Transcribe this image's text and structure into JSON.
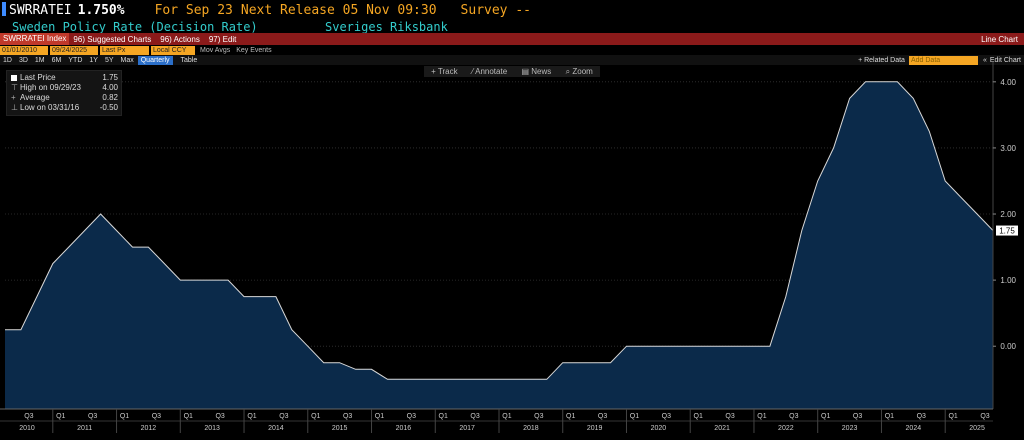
{
  "header": {
    "ticker": "SWRRATEI",
    "last_rate": "1.750%",
    "for_label": "For Sep 23",
    "next_release": "Next Release 05 Nov 09:30",
    "survey": "Survey --",
    "series_title": "Sweden Policy Rate (Decision Rate)",
    "source": "Sveriges Riksbank"
  },
  "menu": {
    "index_label": "SWRRATEI Index",
    "suggested": "96) Suggested Charts",
    "actions": "96) Actions",
    "edit": "97) Edit",
    "chart_type": "Line Chart"
  },
  "controls": {
    "start_date": "01/01/2010",
    "end_date": "09/24/2025",
    "field": "Last Px",
    "currency": "Local CCY",
    "mov_avgs": "Mov Avgs",
    "key_events": "Key Events",
    "periods": [
      "1D",
      "3D",
      "1M",
      "6M",
      "YTD",
      "1Y",
      "5Y",
      "Max"
    ],
    "frequency": "Quarterly",
    "table": "Table",
    "related": "+ Related Data",
    "add_data": "Add Data",
    "edit_chart": "Edit Chart"
  },
  "toolbar": {
    "track": "Track",
    "annotate": "Annotate",
    "news": "News",
    "zoom": "Zoom"
  },
  "legend": [
    {
      "label": "Last Price",
      "value": "1.75"
    },
    {
      "label": "High on 09/29/23",
      "value": "4.00"
    },
    {
      "label": "Average",
      "value": "0.82"
    },
    {
      "label": "Low on 03/31/16",
      "value": "-0.50"
    }
  ],
  "colors": {
    "fill": "#0b2a4a",
    "line": "#d9d9d9",
    "accent": "#f5a623",
    "header_bar": "#8b1a1a"
  },
  "chart_data": {
    "type": "area",
    "title": "Sweden Policy Rate (Decision Rate)",
    "x": [
      "2010-03-31",
      "2010-06-30",
      "2010-09-30",
      "2010-12-31",
      "2011-03-31",
      "2011-06-30",
      "2011-09-30",
      "2011-12-31",
      "2012-03-31",
      "2012-06-30",
      "2012-09-30",
      "2012-12-31",
      "2013-03-31",
      "2013-06-30",
      "2013-09-30",
      "2013-12-31",
      "2014-03-31",
      "2014-06-30",
      "2014-09-30",
      "2014-12-31",
      "2015-03-31",
      "2015-06-30",
      "2015-09-30",
      "2015-12-31",
      "2016-03-31",
      "2016-06-30",
      "2016-09-30",
      "2016-12-31",
      "2017-03-31",
      "2017-06-30",
      "2017-09-30",
      "2017-12-31",
      "2018-03-31",
      "2018-06-30",
      "2018-09-30",
      "2018-12-31",
      "2019-03-31",
      "2019-06-30",
      "2019-09-30",
      "2019-12-31",
      "2020-03-31",
      "2020-06-30",
      "2020-09-30",
      "2020-12-31",
      "2021-03-31",
      "2021-06-30",
      "2021-09-30",
      "2021-12-31",
      "2022-03-31",
      "2022-06-30",
      "2022-09-30",
      "2022-12-31",
      "2023-03-31",
      "2023-06-30",
      "2023-09-30",
      "2023-12-31",
      "2024-03-31",
      "2024-06-30",
      "2024-09-30",
      "2024-12-31",
      "2025-03-31",
      "2025-06-30",
      "2025-09-30"
    ],
    "values": [
      0.25,
      0.25,
      0.75,
      1.25,
      1.5,
      1.75,
      2.0,
      1.75,
      1.5,
      1.5,
      1.25,
      1.0,
      1.0,
      1.0,
      1.0,
      0.75,
      0.75,
      0.75,
      0.25,
      0.0,
      -0.25,
      -0.25,
      -0.35,
      -0.35,
      -0.5,
      -0.5,
      -0.5,
      -0.5,
      -0.5,
      -0.5,
      -0.5,
      -0.5,
      -0.5,
      -0.5,
      -0.5,
      -0.25,
      -0.25,
      -0.25,
      -0.25,
      0.0,
      0.0,
      0.0,
      0.0,
      0.0,
      0.0,
      0.0,
      0.0,
      0.0,
      0.0,
      0.75,
      1.75,
      2.5,
      3.0,
      3.75,
      4.0,
      4.0,
      4.0,
      3.75,
      3.25,
      2.5,
      2.25,
      2.0,
      1.75
    ],
    "ylim": [
      -0.95,
      4.3
    ],
    "y_ticks": [
      "4.00",
      "3.00",
      "2.00",
      "1.00",
      "0.00"
    ],
    "years": [
      "2010",
      "2011",
      "2012",
      "2013",
      "2014",
      "2015",
      "2016",
      "2017",
      "2018",
      "2019",
      "2020",
      "2021",
      "2022",
      "2023",
      "2024",
      "2025"
    ],
    "last_value_label": "1.75",
    "grid": true
  }
}
